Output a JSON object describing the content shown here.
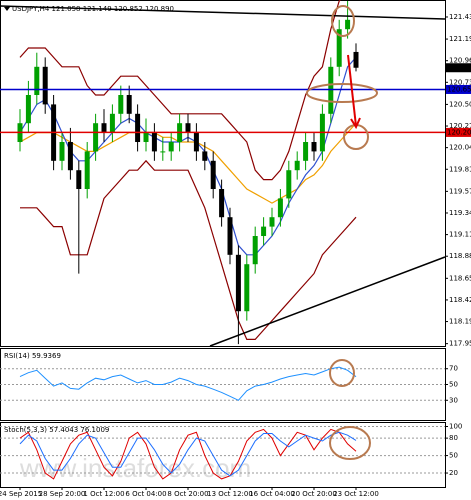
{
  "chart_data": [
    {
      "type": "candlestick",
      "title": "USDJPY,H4 121.058 121.149 120.852 120.890",
      "watermark": "www.instaforex.com",
      "categories": [
        "24 Sep 2015",
        null,
        null,
        null,
        null,
        "28 Sep 20:00",
        null,
        null,
        null,
        null,
        "1 Oct 12:00",
        null,
        null,
        null,
        null,
        "6 Oct 04:00",
        null,
        null,
        null,
        null,
        "8 Oct 20:00",
        null,
        null,
        null,
        null,
        "13 Oct 12:00",
        null,
        null,
        null,
        null,
        "16 Oct 04:00",
        null,
        null,
        null,
        null,
        "20 Oct 20:00",
        null,
        null,
        null,
        null,
        "23 Oct 12:00"
      ],
      "open": [
        120.1,
        120.3,
        120.6,
        120.9,
        120.5,
        119.9,
        120.1,
        119.8,
        119.6,
        120.0,
        120.3,
        120.2,
        120.4,
        120.6,
        120.4,
        120.1,
        120.2,
        120.0,
        120.0,
        120.1,
        120.3,
        120.2,
        120.0,
        119.9,
        119.6,
        119.3,
        118.9,
        118.3,
        118.8,
        119.1,
        119.2,
        119.3,
        119.5,
        119.8,
        119.9,
        120.1,
        120.0,
        120.4,
        120.9,
        121.3,
        121.058
      ],
      "high": [
        120.45,
        120.75,
        121.05,
        121.0,
        120.6,
        120.2,
        120.25,
        119.9,
        120.1,
        120.4,
        120.45,
        120.5,
        120.7,
        120.7,
        120.5,
        120.35,
        120.3,
        120.15,
        120.2,
        120.4,
        120.4,
        120.3,
        120.1,
        120.0,
        119.7,
        119.4,
        119.0,
        118.9,
        119.2,
        119.3,
        119.4,
        119.6,
        119.9,
        120.0,
        120.2,
        120.2,
        120.5,
        121.0,
        121.4,
        121.6,
        121.149
      ],
      "low": [
        120.0,
        120.2,
        120.5,
        120.4,
        119.8,
        119.8,
        119.7,
        118.7,
        119.5,
        119.9,
        120.1,
        120.1,
        120.3,
        120.3,
        120.0,
        120.0,
        119.9,
        119.9,
        119.9,
        120.0,
        120.1,
        119.9,
        119.8,
        119.5,
        119.2,
        118.8,
        117.95,
        118.2,
        118.7,
        119.0,
        119.1,
        119.2,
        119.4,
        119.7,
        119.8,
        119.9,
        119.9,
        120.3,
        120.8,
        121.2,
        120.852
      ],
      "close": [
        120.3,
        120.6,
        120.9,
        120.5,
        119.9,
        120.1,
        119.8,
        119.6,
        120.0,
        120.3,
        120.2,
        120.4,
        120.6,
        120.4,
        120.1,
        120.2,
        120.0,
        120.0,
        120.1,
        120.3,
        120.2,
        120.0,
        119.9,
        119.6,
        119.3,
        118.9,
        118.3,
        118.8,
        119.1,
        119.2,
        119.3,
        119.5,
        119.8,
        119.9,
        120.1,
        120.0,
        120.4,
        120.9,
        121.3,
        121.4,
        120.89
      ],
      "up_color": "#00a000",
      "down_color": "#000000",
      "lines": [
        {
          "color": "#8b0000",
          "values": [
            121.0,
            121.1,
            121.1,
            121.1,
            121.0,
            120.9,
            120.9,
            120.9,
            120.7,
            120.6,
            120.6,
            120.7,
            120.8,
            120.8,
            120.8,
            120.7,
            120.6,
            120.5,
            120.4,
            120.4,
            120.4,
            120.4,
            120.4,
            120.4,
            120.4,
            120.3,
            120.2,
            120.1,
            119.8,
            119.7,
            119.7,
            119.8,
            120.0,
            120.3,
            120.6,
            120.8,
            120.9,
            121.3,
            121.6,
            121.7,
            121.7
          ]
        },
        {
          "color": "#8b0000",
          "values": [
            119.4,
            119.4,
            119.4,
            119.3,
            119.2,
            119.2,
            118.9,
            118.9,
            118.9,
            119.2,
            119.5,
            119.6,
            119.7,
            119.8,
            119.8,
            119.9,
            119.8,
            119.8,
            119.8,
            119.8,
            119.8,
            119.6,
            119.4,
            119.1,
            118.8,
            118.5,
            118.2,
            118.0,
            118.0,
            118.1,
            118.2,
            118.3,
            118.4,
            118.5,
            118.6,
            118.7,
            118.9,
            119.0,
            119.1,
            119.2,
            119.3
          ]
        },
        {
          "color": "#f0a000",
          "values": [
            120.1,
            120.15,
            120.2,
            120.2,
            120.2,
            120.15,
            120.1,
            120.05,
            120.0,
            120.0,
            120.05,
            120.1,
            120.15,
            120.2,
            120.2,
            120.2,
            120.2,
            120.15,
            120.15,
            120.1,
            120.1,
            120.1,
            120.05,
            120.0,
            119.9,
            119.8,
            119.7,
            119.6,
            119.55,
            119.5,
            119.45,
            119.5,
            119.55,
            119.6,
            119.7,
            119.75,
            119.85,
            120.0,
            120.1,
            120.2,
            120.3
          ]
        },
        {
          "color": "#3050d0",
          "values": [
            120.2,
            120.35,
            120.5,
            120.55,
            120.4,
            120.2,
            120.0,
            119.9,
            119.9,
            120.0,
            120.1,
            120.2,
            120.3,
            120.35,
            120.3,
            120.2,
            120.15,
            120.1,
            120.1,
            120.1,
            120.15,
            120.1,
            120.0,
            119.8,
            119.6,
            119.3,
            119.0,
            118.9,
            118.9,
            119.0,
            119.1,
            119.25,
            119.45,
            119.6,
            119.75,
            119.85,
            120.0,
            120.3,
            120.6,
            120.9,
            121.0
          ]
        }
      ],
      "levels": [
        {
          "value": 120.659,
          "label": "120.659",
          "color": "#0000cc"
        },
        {
          "value": 120.202,
          "label": "120.202",
          "color": "#e00000"
        }
      ],
      "last_price": {
        "value": 120.89,
        "label": "120.890"
      },
      "ylim": [
        117.93,
        121.6
      ],
      "yticks": [
        {
          "value": 117.955,
          "label": "117.955"
        },
        {
          "value": 118.19,
          "label": "118.190"
        },
        {
          "value": 118.42,
          "label": "118.420"
        },
        {
          "value": 118.65,
          "label": "118.650"
        },
        {
          "value": 118.885,
          "label": "118.885"
        },
        {
          "value": 119.115,
          "label": "119.115"
        },
        {
          "value": 119.345,
          "label": "119.345"
        },
        {
          "value": 119.575,
          "label": "119.575"
        },
        {
          "value": 119.81,
          "label": "119.810"
        },
        {
          "value": 120.04,
          "label": "120.040"
        },
        {
          "value": 120.27,
          "label": "120.270"
        },
        {
          "value": 120.5,
          "label": "120.500"
        },
        {
          "value": 120.735,
          "label": "120.735"
        },
        {
          "value": 120.965,
          "label": "120.965"
        },
        {
          "value": 121.195,
          "label": "121.195"
        },
        {
          "value": 121.43,
          "label": "121.430"
        }
      ],
      "grid": false
    },
    {
      "type": "line",
      "title": "RSI(14) 59.9369",
      "series": [
        {
          "color": "#1e90ff",
          "values": [
            60,
            65,
            68,
            58,
            48,
            52,
            45,
            44,
            52,
            58,
            56,
            60,
            62,
            57,
            52,
            55,
            50,
            50,
            53,
            58,
            55,
            50,
            48,
            44,
            40,
            35,
            30,
            42,
            48,
            50,
            53,
            57,
            60,
            62,
            64,
            62,
            66,
            70,
            72,
            68,
            59.9369
          ]
        }
      ],
      "ylim": [
        5,
        95
      ],
      "yticks": [
        30,
        50,
        70
      ],
      "grid": true
    },
    {
      "type": "line",
      "title": "Stoch(5,3,3) 57.4043 76.1009",
      "series": [
        {
          "color": "#e00000",
          "values": [
            80,
            90,
            60,
            20,
            10,
            40,
            70,
            85,
            90,
            60,
            30,
            15,
            40,
            80,
            90,
            70,
            30,
            10,
            20,
            60,
            85,
            90,
            50,
            20,
            10,
            15,
            40,
            75,
            90,
            95,
            80,
            50,
            70,
            90,
            85,
            60,
            80,
            95,
            90,
            70,
            57.4043
          ]
        },
        {
          "color": "#1e6fff",
          "values": [
            70,
            85,
            75,
            45,
            25,
            25,
            45,
            70,
            85,
            80,
            55,
            30,
            30,
            55,
            80,
            80,
            60,
            35,
            20,
            35,
            60,
            80,
            75,
            50,
            25,
            15,
            25,
            50,
            75,
            88,
            88,
            75,
            65,
            75,
            85,
            80,
            75,
            85,
            90,
            85,
            76.1009
          ]
        }
      ],
      "ylim": [
        -4,
        106
      ],
      "yticks": [
        20,
        50,
        80,
        100
      ],
      "grid": true
    }
  ]
}
